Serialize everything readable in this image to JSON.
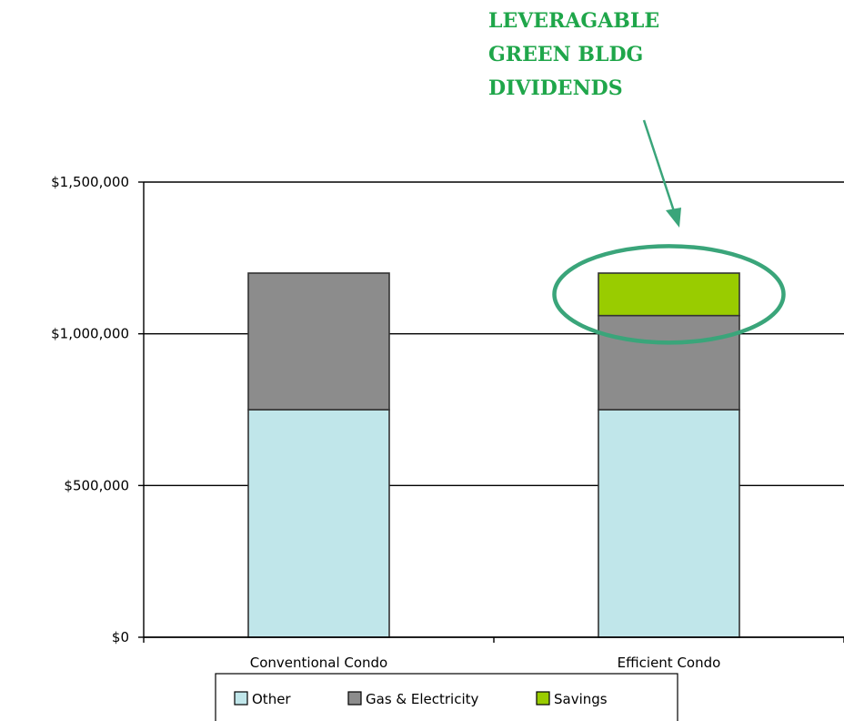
{
  "chart_data": {
    "type": "bar",
    "stacked": true,
    "categories": [
      "Conventional Condo",
      "Efficient Condo"
    ],
    "series": [
      {
        "name": "Other",
        "values": [
          750000,
          750000
        ],
        "color": "#c0e6ea"
      },
      {
        "name": "Gas & Electricity",
        "values": [
          450000,
          310000
        ],
        "color": "#8c8c8c"
      },
      {
        "name": "Savings",
        "values": [
          0,
          140000
        ],
        "color": "#99cc00"
      }
    ],
    "ylim": [
      0,
      1500000
    ],
    "yticks": [
      0,
      500000,
      1000000,
      1500000
    ],
    "ytick_labels": [
      "$0",
      "$500,000",
      "$1,000,000",
      "$1,500,000"
    ],
    "grid": true,
    "legend_position": "bottom",
    "annotation": {
      "lines": [
        "LEVERAGABLE",
        "GREEN BLDG",
        "DIVIDENDS"
      ],
      "color": "#1fa64a",
      "highlight_color": "#3aa57a",
      "target": "Efficient Condo Savings"
    }
  }
}
